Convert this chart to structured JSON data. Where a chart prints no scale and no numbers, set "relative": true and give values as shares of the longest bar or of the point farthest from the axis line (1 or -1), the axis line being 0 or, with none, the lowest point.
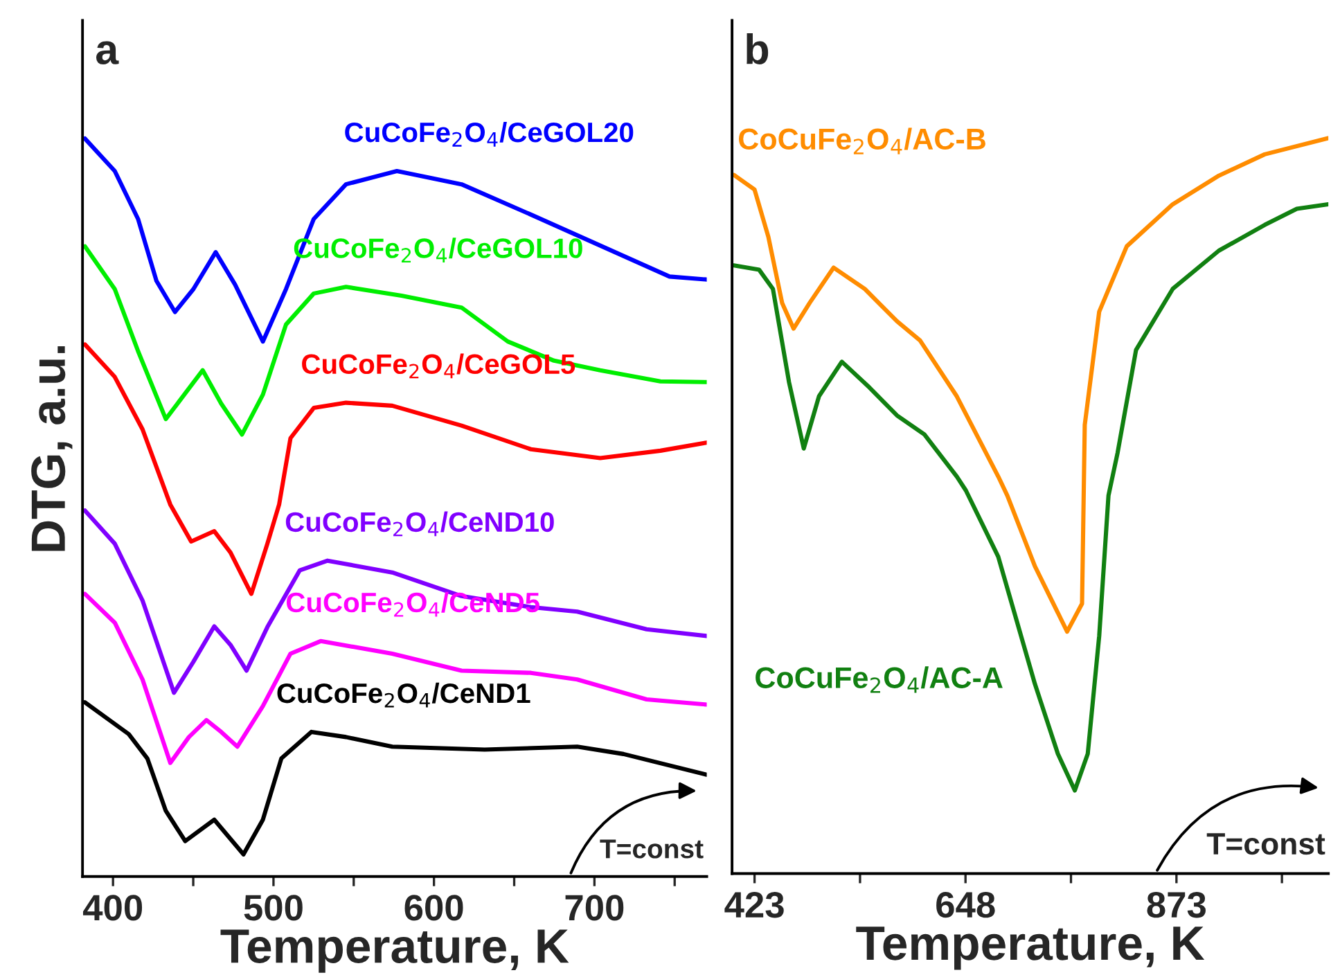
{
  "chart_data": [
    {
      "type": "line",
      "title": "a",
      "xlabel": "Temperature, K",
      "ylabel": "DTG, a.u.",
      "relative": true,
      "tick_labels": "x",
      "grid": false,
      "legend": false,
      "xlim": [
        381,
        770
      ],
      "xticks": [
        400,
        {
          "value": 450,
          "label": null
        },
        500,
        {
          "value": 550,
          "label": null
        },
        600,
        {
          "value": 650,
          "label": null
        },
        700,
        {
          "value": 750,
          "label": null
        }
      ],
      "annotations": [
        "T=const"
      ],
      "series": [
        {
          "name": "CuCoFe$_{2}$O$_{4}$/CeGOL20",
          "color": "#0000ff",
          "x": [
            382.5,
            401.1,
            415.6,
            427.1,
            438.6,
            450.1,
            464,
            476.1,
            493.4,
            507.8,
            525.1,
            545.2,
            576.9,
            617.2,
            660.4,
            703.6,
            746.8,
            769.9
          ],
          "values": [
            1.0,
            0.956,
            0.891,
            0.807,
            0.765,
            0.796,
            0.846,
            0.802,
            0.725,
            0.796,
            0.891,
            0.938,
            0.956,
            0.938,
            0.897,
            0.855,
            0.813,
            0.809
          ]
        },
        {
          "name": "CuCoFe$_{2}$O$_{4}$/CeGOL10",
          "color": "#00ee00",
          "x": [
            382.5,
            401.1,
            415.6,
            432.9,
            444.4,
            455.9,
            467.4,
            480.4,
            493.4,
            507.8,
            525.1,
            545.2,
            579.8,
            617.2,
            646,
            674.8,
            703.6,
            741.1,
            769.9
          ],
          "values": [
            0.854,
            0.796,
            0.712,
            0.62,
            0.653,
            0.686,
            0.641,
            0.599,
            0.653,
            0.748,
            0.79,
            0.799,
            0.787,
            0.771,
            0.725,
            0.699,
            0.686,
            0.671,
            0.67
          ]
        },
        {
          "name": "CuCoFe$_{2}$O$_{4}$/CeGOL5",
          "color": "#ff0000",
          "x": [
            382.5,
            401.1,
            418.4,
            435.7,
            448.7,
            463.1,
            473.2,
            486.2,
            496.2,
            503.5,
            510.6,
            525.1,
            545.2,
            574,
            617.2,
            660.4,
            703.6,
            741.1,
            769.9
          ],
          "values": [
            0.721,
            0.677,
            0.606,
            0.504,
            0.454,
            0.468,
            0.439,
            0.383,
            0.451,
            0.504,
            0.594,
            0.635,
            0.642,
            0.638,
            0.611,
            0.579,
            0.567,
            0.577,
            0.588
          ]
        },
        {
          "name": "CuCoFe$_{2}$O$_{4}$/CeND10",
          "color": "#8000ff",
          "x": [
            382.5,
            401.1,
            418.4,
            438,
            450.1,
            463.1,
            473.2,
            483.2,
            496.2,
            516.4,
            533.7,
            574,
            617.2,
            660.4,
            689.3,
            732.5,
            769.9
          ],
          "values": [
            0.496,
            0.451,
            0.374,
            0.249,
            0.291,
            0.339,
            0.314,
            0.279,
            0.338,
            0.415,
            0.428,
            0.412,
            0.38,
            0.365,
            0.359,
            0.335,
            0.326
          ]
        },
        {
          "name": "CuCoFe$_{2}$O$_{4}$/CeND5",
          "color": "#ff00ff",
          "x": [
            382.5,
            401.1,
            418.4,
            435.7,
            447.3,
            458.2,
            467.4,
            477.5,
            493.4,
            510.6,
            529.4,
            574,
            617.2,
            660.4,
            689.3,
            732.5,
            769.9
          ],
          "values": [
            0.383,
            0.344,
            0.267,
            0.154,
            0.189,
            0.212,
            0.196,
            0.176,
            0.231,
            0.302,
            0.319,
            0.302,
            0.279,
            0.276,
            0.267,
            0.24,
            0.233
          ]
        },
        {
          "name": "CuCoFe$_{2}$O$_{4}$/CeND1",
          "color": "#000000",
          "x": [
            382.5,
            409.8,
            421.4,
            432.9,
            445,
            463.1,
            481.3,
            493.4,
            504.9,
            523.6,
            545.2,
            574,
            631.6,
            689.3,
            718.1,
            769.9
          ],
          "values": [
            0.236,
            0.193,
            0.16,
            0.089,
            0.048,
            0.077,
            0.03,
            0.077,
            0.16,
            0.196,
            0.189,
            0.176,
            0.172,
            0.176,
            0.166,
            0.138
          ]
        }
      ]
    },
    {
      "type": "line",
      "title": "b",
      "xlabel": "Temperature, K",
      "relative": true,
      "tick_labels": "x",
      "grid": false,
      "legend": false,
      "xlim": [
        399,
        1035
      ],
      "xticks": [
        423,
        {
          "value": 535.5,
          "label": null
        },
        648,
        {
          "value": 760.5,
          "label": null
        },
        873,
        {
          "value": 985.5,
          "label": null
        }
      ],
      "annotations": [
        "T=const"
      ],
      "series": [
        {
          "name": "CoCuFe$_{2}$O$_{4}$/AC-B",
          "color": "#ff8c00",
          "x": [
            400.9,
            423,
            437.7,
            452.4,
            464.6,
            481.8,
            507.3,
            540.6,
            574.9,
            599.5,
            638.7,
            682.9,
            692.6,
            722,
            756.4,
            772.3,
            775.2,
            790.6,
            820,
            869,
            918.2,
            967.1,
            1034.8
          ],
          "values": [
            0.95,
            0.93,
            0.866,
            0.776,
            0.741,
            0.776,
            0.824,
            0.795,
            0.751,
            0.725,
            0.649,
            0.54,
            0.514,
            0.418,
            0.329,
            0.367,
            0.61,
            0.764,
            0.853,
            0.91,
            0.949,
            0.978,
            1.0
          ]
        },
        {
          "name": "CoCuFe$_{2}$O$_{4}$/AC-A",
          "color": "#118011",
          "x": [
            400.9,
            427.9,
            442.6,
            459.8,
            475.5,
            491.7,
            516.1,
            545.5,
            574.9,
            604.3,
            638.7,
            648.4,
            682.9,
            722,
            746.5,
            764.6,
            778.4,
            790.6,
            800.5,
            810.2,
            829.9,
            869,
            918.2,
            967.1,
            1001.4,
            1034.8
          ],
          "values": [
            0.827,
            0.821,
            0.795,
            0.668,
            0.578,
            0.649,
            0.696,
            0.661,
            0.623,
            0.597,
            0.54,
            0.521,
            0.431,
            0.258,
            0.163,
            0.113,
            0.163,
            0.323,
            0.514,
            0.572,
            0.712,
            0.795,
            0.847,
            0.882,
            0.904,
            0.91
          ]
        }
      ]
    }
  ]
}
